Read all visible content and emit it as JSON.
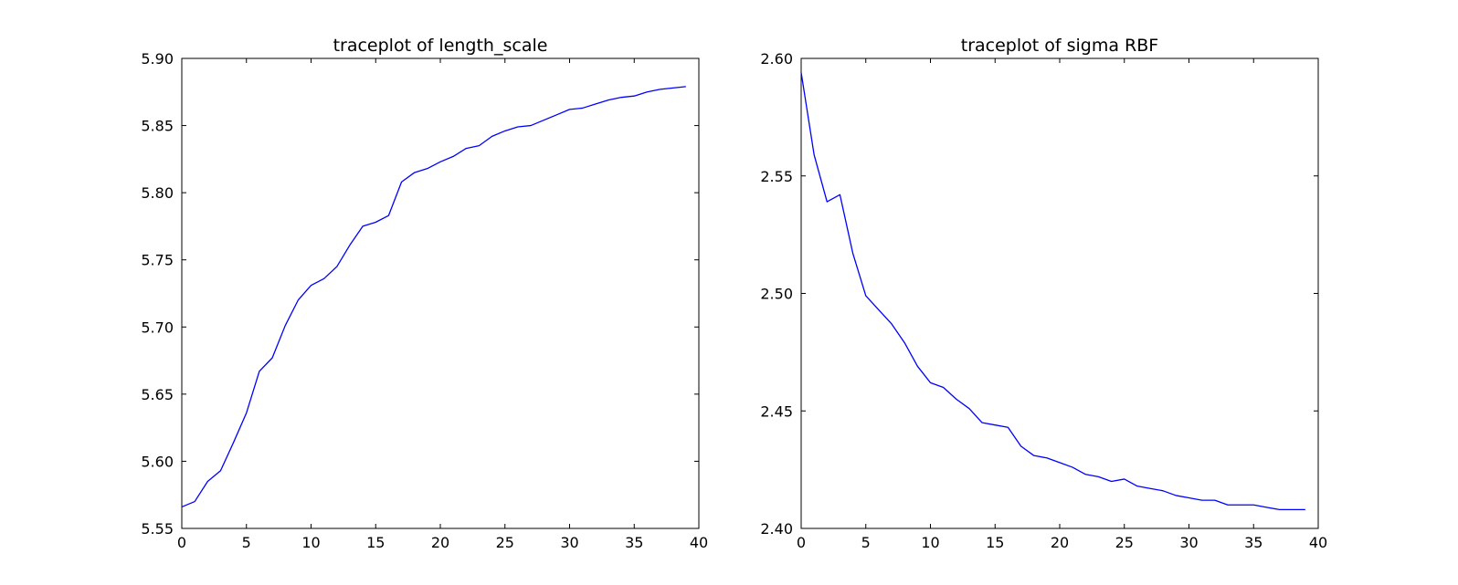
{
  "chart_data": [
    {
      "type": "line",
      "title": "traceplot of length_scale",
      "xlabel": "",
      "ylabel": "",
      "xlim": [
        0,
        40
      ],
      "ylim": [
        5.55,
        5.9
      ],
      "xticks": [
        "0",
        "5",
        "10",
        "15",
        "20",
        "25",
        "30",
        "35",
        "40"
      ],
      "yticks": [
        "5.55",
        "5.60",
        "5.65",
        "5.70",
        "5.75",
        "5.80",
        "5.85",
        "5.90"
      ],
      "grid": false,
      "line_color": "#0000ff",
      "series": [
        {
          "x": [
            0,
            1,
            2,
            3,
            4,
            5,
            6,
            7,
            8,
            9,
            10,
            11,
            12,
            13,
            14,
            15,
            16,
            17,
            18,
            19,
            20,
            21,
            22,
            23,
            24,
            25,
            26,
            27,
            28,
            29,
            30,
            31,
            32,
            33,
            34,
            35,
            36,
            37,
            38,
            39
          ],
          "values": [
            5.566,
            5.57,
            5.585,
            5.593,
            5.614,
            5.636,
            5.667,
            5.677,
            5.701,
            5.72,
            5.731,
            5.736,
            5.745,
            5.761,
            5.775,
            5.778,
            5.783,
            5.808,
            5.815,
            5.818,
            5.823,
            5.827,
            5.833,
            5.835,
            5.842,
            5.846,
            5.849,
            5.85,
            5.854,
            5.858,
            5.862,
            5.863,
            5.866,
            5.869,
            5.871,
            5.872,
            5.875,
            5.877,
            5.878,
            5.879
          ]
        }
      ]
    },
    {
      "type": "line",
      "title": "traceplot of sigma RBF",
      "xlabel": "",
      "ylabel": "",
      "xlim": [
        0,
        40
      ],
      "ylim": [
        2.4,
        2.6
      ],
      "xticks": [
        "0",
        "5",
        "10",
        "15",
        "20",
        "25",
        "30",
        "35",
        "40"
      ],
      "yticks": [
        "2.40",
        "2.45",
        "2.50",
        "2.55",
        "2.60"
      ],
      "grid": false,
      "line_color": "#0000ff",
      "series": [
        {
          "x": [
            0,
            1,
            2,
            3,
            4,
            5,
            6,
            7,
            8,
            9,
            10,
            11,
            12,
            13,
            14,
            15,
            16,
            17,
            18,
            19,
            20,
            21,
            22,
            23,
            24,
            25,
            26,
            27,
            28,
            29,
            30,
            31,
            32,
            33,
            34,
            35,
            36,
            37,
            38,
            39
          ],
          "values": [
            2.594,
            2.559,
            2.539,
            2.542,
            2.517,
            2.499,
            2.493,
            2.487,
            2.479,
            2.469,
            2.462,
            2.46,
            2.455,
            2.451,
            2.445,
            2.444,
            2.443,
            2.435,
            2.431,
            2.43,
            2.428,
            2.426,
            2.423,
            2.422,
            2.42,
            2.421,
            2.418,
            2.417,
            2.416,
            2.414,
            2.413,
            2.412,
            2.412,
            2.41,
            2.41,
            2.41,
            2.409,
            2.408,
            2.408,
            2.408
          ]
        }
      ]
    }
  ]
}
